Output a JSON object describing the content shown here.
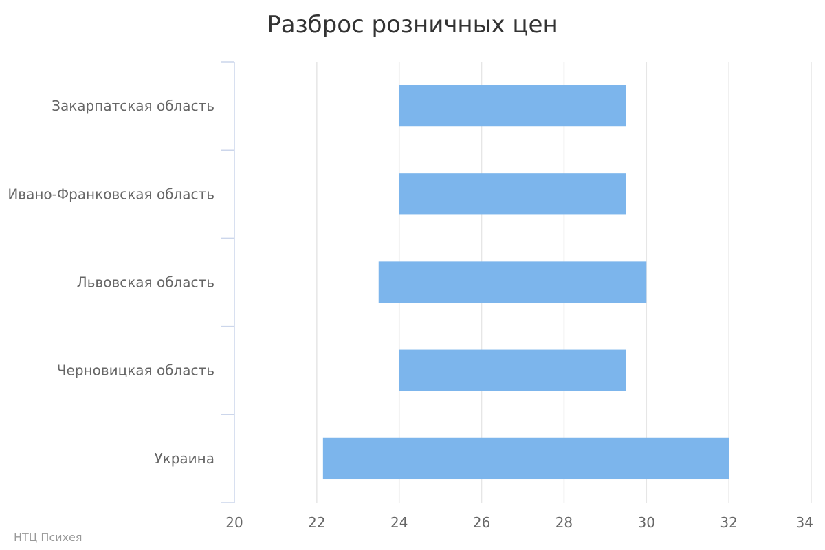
{
  "chart_data": {
    "type": "bar",
    "orientation": "horizontal",
    "title": "Разброс розничных цен",
    "categories": [
      "Закарпатская область",
      "Ивано-Франковская область",
      "Львовская область",
      "Черновицкая область",
      "Украина"
    ],
    "series": [
      {
        "values": [
          [
            24,
            29.5
          ],
          [
            24,
            29.5
          ],
          [
            23.5,
            30
          ],
          [
            24,
            29.5
          ],
          [
            22.15,
            32
          ]
        ],
        "color": "#7cb5ec"
      }
    ],
    "xlim": [
      20,
      34
    ],
    "xticks": [
      "20",
      "22",
      "24",
      "26",
      "28",
      "30",
      "32",
      "34"
    ],
    "grid": true,
    "xlabel": "",
    "ylabel": ""
  },
  "credit": "НТЦ Психея",
  "colors": {
    "bar": "#7cb5ec",
    "grid": "#e6e6e6",
    "axis": "#ccd6eb"
  }
}
